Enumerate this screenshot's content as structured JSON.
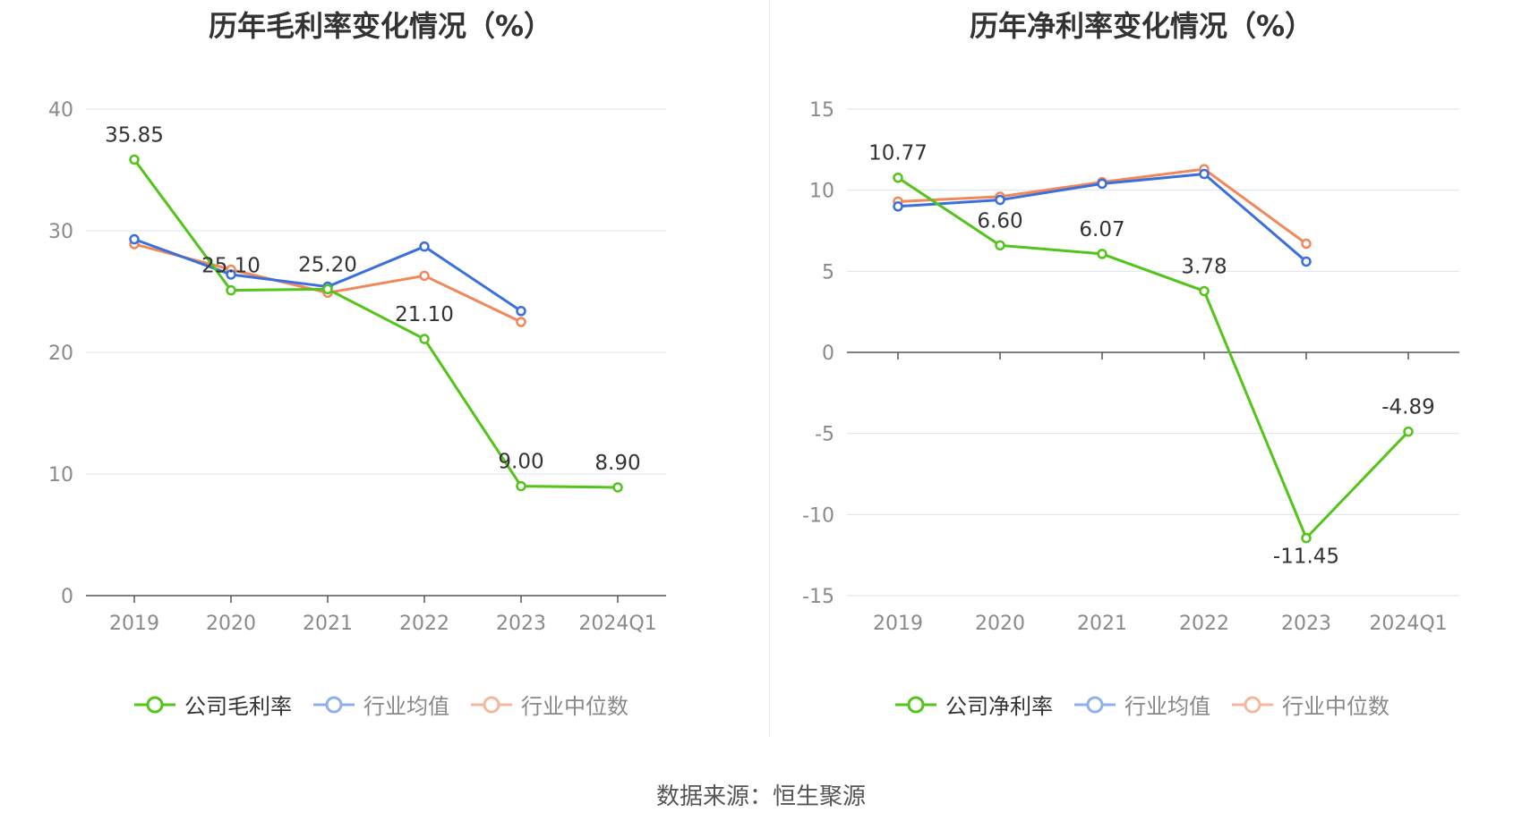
{
  "chart_data": [
    {
      "type": "line",
      "title": "历年毛利率变化情况（%）",
      "categories": [
        "2019",
        "2020",
        "2021",
        "2022",
        "2023",
        "2024Q1"
      ],
      "ylim": [
        0,
        40
      ],
      "yticks": [
        0,
        10,
        20,
        30,
        40
      ],
      "grid": true,
      "legend_position": "bottom",
      "series": [
        {
          "name": "公司毛利率",
          "color": "#52c41a",
          "values": [
            35.85,
            25.1,
            25.2,
            21.1,
            9.0,
            8.9
          ],
          "labels": [
            "35.85",
            "25.10",
            "25.20",
            "21.10",
            "9.00",
            "8.90"
          ]
        },
        {
          "name": "行业均值",
          "color": "#3a6fdc",
          "values": [
            29.3,
            26.4,
            25.4,
            28.7,
            23.4,
            null
          ]
        },
        {
          "name": "行业中位数",
          "color": "#f0885a",
          "values": [
            28.9,
            26.8,
            24.9,
            26.3,
            22.5,
            null
          ]
        }
      ]
    },
    {
      "type": "line",
      "title": "历年净利率变化情况（%）",
      "categories": [
        "2019",
        "2020",
        "2021",
        "2022",
        "2023",
        "2024Q1"
      ],
      "ylim": [
        -15,
        15
      ],
      "yticks": [
        -15,
        -10,
        -5,
        0,
        5,
        10,
        15
      ],
      "grid": true,
      "legend_position": "bottom",
      "series": [
        {
          "name": "公司净利率",
          "color": "#52c41a",
          "values": [
            10.77,
            6.6,
            6.07,
            3.78,
            -11.45,
            -4.89
          ],
          "labels": [
            "10.77",
            "6.60",
            "6.07",
            "3.78",
            "-11.45",
            "-4.89"
          ]
        },
        {
          "name": "行业均值",
          "color": "#3a6fdc",
          "values": [
            9.0,
            9.4,
            10.4,
            11.0,
            5.6,
            null
          ]
        },
        {
          "name": "行业中位数",
          "color": "#f0885a",
          "values": [
            9.3,
            9.6,
            10.5,
            11.3,
            6.7,
            null
          ]
        }
      ]
    }
  ],
  "footer": {
    "source": "数据来源：恒生聚源"
  },
  "colors": {
    "company": "#52c41a",
    "industry_avg": "#3a6fdc",
    "industry_median": "#f0885a",
    "grid": "#dde3f0"
  },
  "legend_marker_colors": {
    "industry_avg": "#8fb0f0",
    "industry_median": "#f5b89c"
  }
}
